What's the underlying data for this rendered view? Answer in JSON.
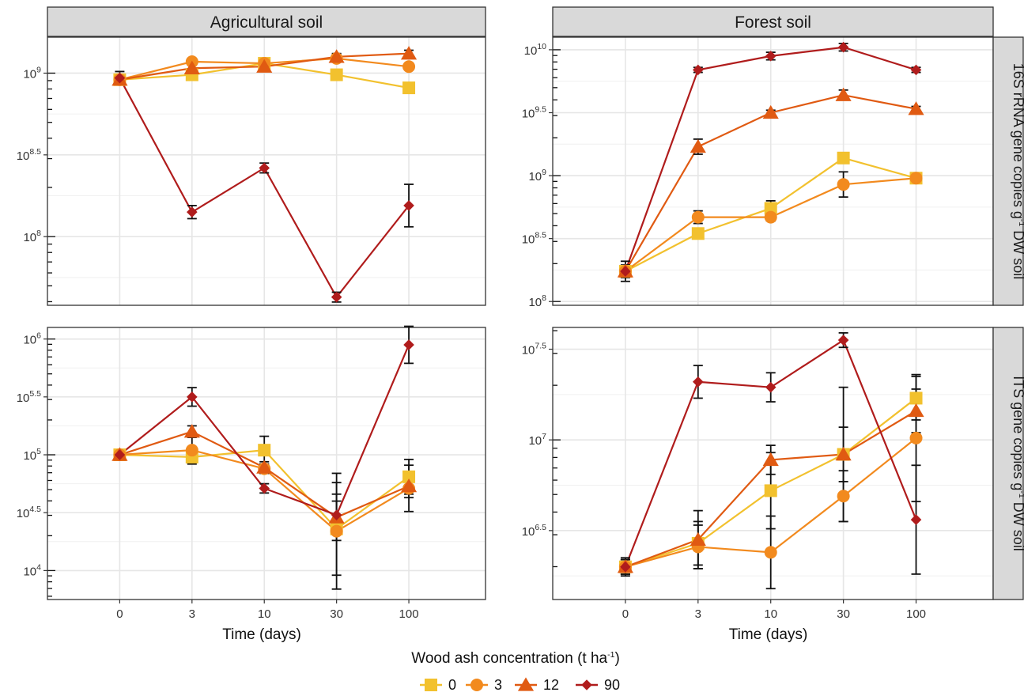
{
  "chart_data": {
    "type": "line",
    "facet_columns": [
      "Agricultural soil",
      "Forest soil"
    ],
    "facet_rows": [
      "16S rRNA  gene copies g-1 DW soil",
      "ITS gene copies g-1 DW soil"
    ],
    "row_label_parts": [
      {
        "pre": "16S rRNA  gene copies g",
        "sup": "-1",
        "post": " DW soil"
      },
      {
        "pre": "ITS gene copies g",
        "sup": "-1",
        "post": " DW soil"
      }
    ],
    "xlabel": "Time (days)",
    "x_categories": [
      "0",
      "3",
      "10",
      "30",
      "100"
    ],
    "y_scale": "log10",
    "legend": {
      "title": "Wood ash concentration (t ha-1)",
      "title_parts": {
        "pre": "Wood ash concentration (t ha",
        "sup": "-1",
        "post": ")"
      },
      "position": "bottom",
      "entries": [
        {
          "label": "0",
          "color": "#f2c12e",
          "shape": "square"
        },
        {
          "label": "3",
          "color": "#f28a1e",
          "shape": "circle"
        },
        {
          "label": "12",
          "color": "#e05a12",
          "shape": "triangle"
        },
        {
          "label": "90",
          "color": "#b01c1c",
          "shape": "diamond"
        }
      ]
    },
    "panels": [
      {
        "column": "Agricultural soil",
        "row": "16S rRNA  gene copies g-1 DW soil",
        "ylim_log10": [
          7.58,
          9.22
        ],
        "major_ticks": [
          8,
          8.5,
          9
        ],
        "tick_labels": [
          {
            "base": "10",
            "exp": "8"
          },
          {
            "base": "10",
            "exp": "8.5"
          },
          {
            "base": "10",
            "exp": "9"
          }
        ],
        "series": [
          {
            "name": "0",
            "y": [
              8.96,
              8.99,
              9.06,
              8.99,
              8.91
            ],
            "err": [
              0.02,
              0.02,
              0.02,
              0.02,
              0.02
            ]
          },
          {
            "name": "3",
            "y": [
              8.96,
              9.07,
              9.06,
              9.09,
              9.04
            ],
            "err": [
              0.02,
              0.02,
              0.02,
              0.02,
              0.02
            ]
          },
          {
            "name": "12",
            "y": [
              8.96,
              9.03,
              9.04,
              9.1,
              9.12
            ],
            "err": [
              0.02,
              0.02,
              0.03,
              0.02,
              0.02
            ]
          },
          {
            "name": "90",
            "y": [
              8.97,
              8.15,
              8.42,
              7.63,
              8.19
            ],
            "err": [
              0.04,
              0.04,
              0.03,
              0.03,
              0.13
            ]
          }
        ]
      },
      {
        "column": "Forest soil",
        "row": "16S rRNA  gene copies g-1 DW soil",
        "ylim_log10": [
          7.97,
          10.1
        ],
        "major_ticks": [
          8,
          8.5,
          9,
          9.5,
          10
        ],
        "tick_labels": [
          {
            "base": "10",
            "exp": "8"
          },
          {
            "base": "10",
            "exp": "8.5"
          },
          {
            "base": "10",
            "exp": "9"
          },
          {
            "base": "10",
            "exp": "9.5"
          },
          {
            "base": "10",
            "exp": "10"
          }
        ],
        "series": [
          {
            "name": "0",
            "y": [
              8.24,
              8.54,
              8.74,
              9.14,
              8.98
            ],
            "err": [
              0.04,
              0.04,
              0.06,
              0.03,
              0.04
            ]
          },
          {
            "name": "3",
            "y": [
              8.24,
              8.67,
              8.67,
              8.93,
              8.98
            ],
            "err": [
              0.08,
              0.05,
              0.03,
              0.1,
              0.04
            ]
          },
          {
            "name": "12",
            "y": [
              8.24,
              9.23,
              9.5,
              9.64,
              9.53
            ],
            "err": [
              0.04,
              0.06,
              0.02,
              0.04,
              0.02
            ]
          },
          {
            "name": "90",
            "y": [
              8.24,
              9.84,
              9.95,
              10.02,
              9.84
            ],
            "err": [
              0.05,
              0.02,
              0.03,
              0.03,
              0.02
            ]
          }
        ]
      },
      {
        "column": "Agricultural soil",
        "row": "ITS gene copies g-1 DW soil",
        "ylim_log10": [
          3.75,
          6.1
        ],
        "major_ticks": [
          4,
          4.5,
          5,
          5.5,
          6
        ],
        "tick_labels": [
          {
            "base": "10",
            "exp": "4"
          },
          {
            "base": "10",
            "exp": "4.5"
          },
          {
            "base": "10",
            "exp": "5"
          },
          {
            "base": "10",
            "exp": "5.5"
          },
          {
            "base": "10",
            "exp": "6"
          }
        ],
        "series": [
          {
            "name": "0",
            "y": [
              5.0,
              4.98,
              5.04,
              4.36,
              4.81
            ],
            "err": [
              0.03,
              0.05,
              0.12,
              0.4,
              0.15
            ]
          },
          {
            "name": "3",
            "y": [
              5.0,
              5.04,
              4.88,
              4.34,
              4.71
            ],
            "err": [
              0.03,
              0.12,
              0.04,
              0.5,
              0.2
            ]
          },
          {
            "name": "12",
            "y": [
              5.0,
              5.2,
              4.89,
              4.46,
              4.73
            ],
            "err": [
              0.03,
              0.05,
              0.05,
              0.2,
              0.1
            ]
          },
          {
            "name": "90",
            "y": [
              5.0,
              5.5,
              4.71,
              4.48,
              5.95
            ],
            "err": [
              0.03,
              0.08,
              0.04,
              0.12,
              0.16
            ]
          }
        ]
      },
      {
        "column": "Forest soil",
        "row": "ITS gene copies g-1 DW soil",
        "ylim_log10": [
          6.12,
          7.62
        ],
        "major_ticks": [
          6.5,
          7,
          7.5
        ],
        "tick_labels": [
          {
            "base": "10",
            "exp": "6.5"
          },
          {
            "base": "10",
            "exp": "7"
          },
          {
            "base": "10",
            "exp": "7.5"
          }
        ],
        "series": [
          {
            "name": "0",
            "y": [
              6.3,
              6.43,
              6.72,
              6.92,
              7.23
            ],
            "err": [
              0.04,
              0.12,
              0.21,
              0.37,
              0.12
            ]
          },
          {
            "name": "3",
            "y": [
              6.3,
              6.41,
              6.38,
              6.69,
              7.01
            ],
            "err": [
              0.05,
              0.12,
              0.2,
              0.14,
              0.35
            ]
          },
          {
            "name": "12",
            "y": [
              6.3,
              6.45,
              6.89,
              6.92,
              7.16
            ],
            "err": [
              0.04,
              0.16,
              0.08,
              0.15,
              0.12
            ]
          },
          {
            "name": "90",
            "y": [
              6.3,
              7.32,
              7.29,
              7.55,
              6.56
            ],
            "err": [
              0.04,
              0.09,
              0.08,
              0.04,
              0.3
            ]
          }
        ]
      }
    ]
  }
}
